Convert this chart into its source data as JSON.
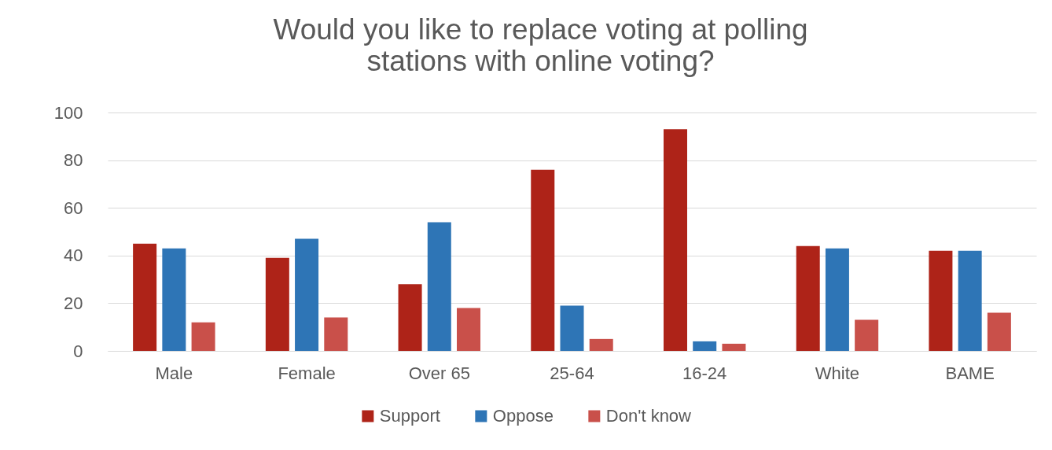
{
  "chart_data": {
    "type": "bar",
    "title": "Would you like to replace voting at polling stations with online voting?",
    "categories": [
      "Male",
      "Female",
      "Over 65",
      "25-64",
      "16-24",
      "White",
      "BAME"
    ],
    "series": [
      {
        "name": "Support",
        "color": "#ae2318",
        "values": [
          45,
          39,
          28,
          76,
          93,
          44,
          42
        ]
      },
      {
        "name": "Oppose",
        "color": "#2e75b6",
        "values": [
          43,
          47,
          54,
          19,
          4,
          43,
          42
        ]
      },
      {
        "name": "Don't know",
        "color": "#c9504a",
        "values": [
          12,
          14,
          18,
          5,
          3,
          13,
          16
        ]
      }
    ],
    "ylim": [
      0,
      100
    ],
    "yticks": [
      0,
      20,
      40,
      60,
      80,
      100
    ],
    "grid": "y",
    "legend": "bottom"
  }
}
